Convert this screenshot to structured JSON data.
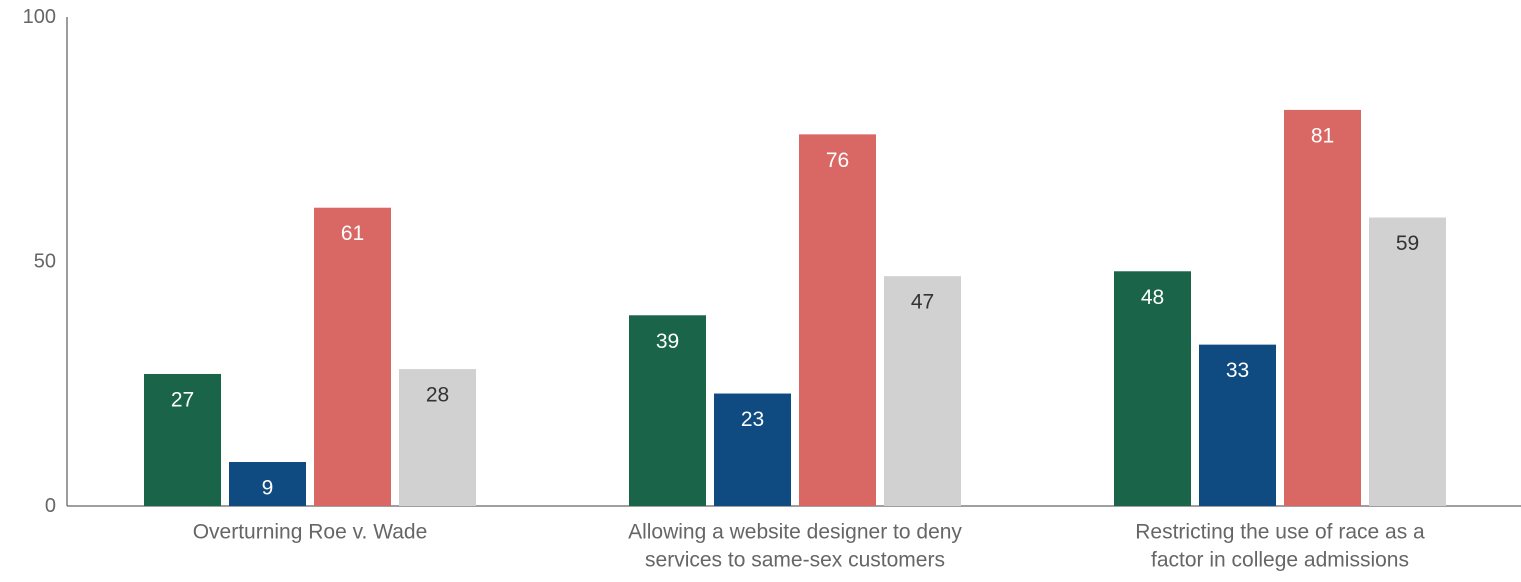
{
  "chart_data": {
    "type": "bar",
    "title": "",
    "xlabel": "",
    "ylabel": "",
    "ylim": [
      0,
      100
    ],
    "yticks": [
      0,
      50,
      100
    ],
    "grid": false,
    "legend": "none",
    "categories": [
      [
        "Overturning Roe v. Wade"
      ],
      [
        "Allowing a website designer to deny",
        "services to same-sex customers"
      ],
      [
        "Restricting the use of race as a",
        "factor in college admissions"
      ]
    ],
    "series": [
      {
        "values": [
          27,
          39,
          48
        ],
        "color": "#1a6449",
        "label_color": "#ffffff"
      },
      {
        "values": [
          9,
          23,
          33
        ],
        "color": "#0f4a80",
        "label_color": "#ffffff"
      },
      {
        "values": [
          61,
          76,
          81
        ],
        "color": "#d96865",
        "label_color": "#ffffff"
      },
      {
        "values": [
          28,
          47,
          59
        ],
        "color": "#d1d1d1",
        "label_color": "#333333"
      }
    ],
    "axis_color": "#666666"
  }
}
